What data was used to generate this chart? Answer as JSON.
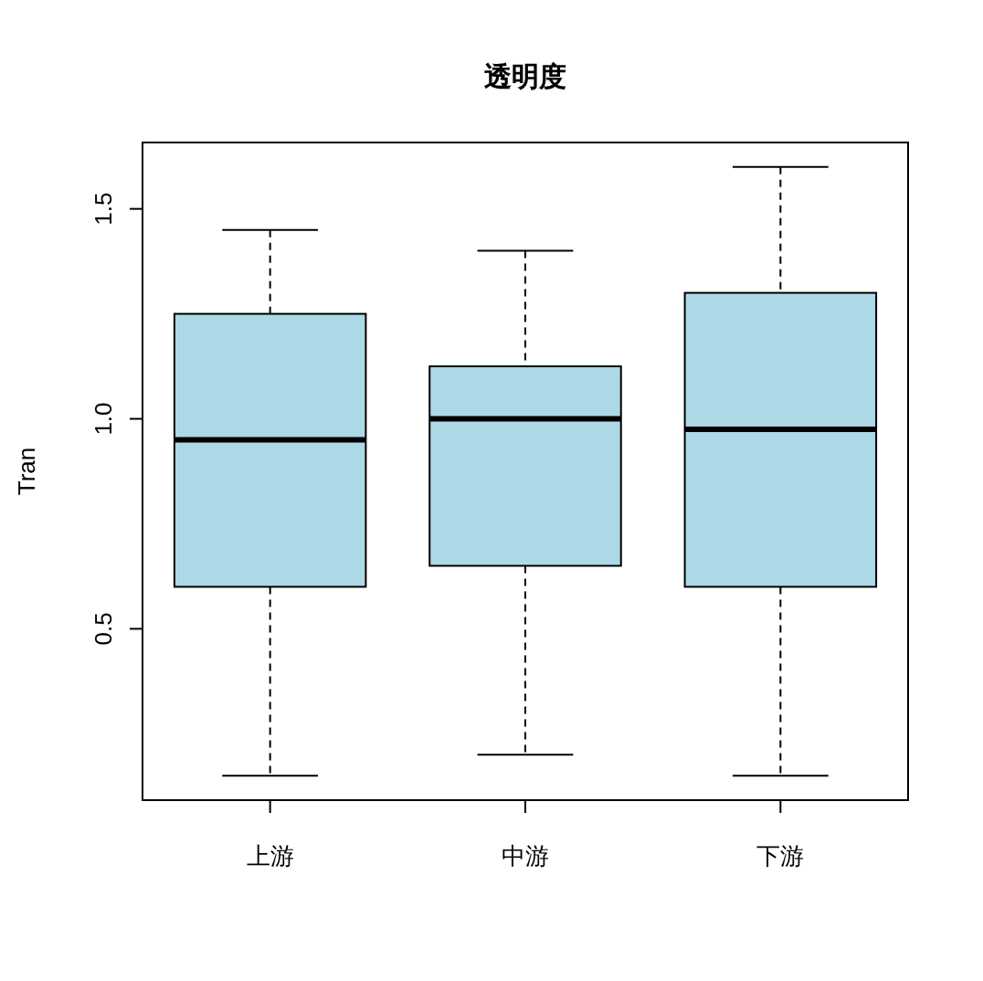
{
  "chart_data": {
    "type": "box",
    "title": "透明度",
    "ylabel": "Tran",
    "categories": [
      "上游",
      "中游",
      "下游"
    ],
    "color": "#add8e6",
    "boxes": [
      {
        "low": 0.15,
        "q1": 0.6,
        "median": 0.95,
        "q3": 1.25,
        "high": 1.45
      },
      {
        "low": 0.2,
        "q1": 0.65,
        "median": 1.0,
        "q3": 1.125,
        "high": 1.4
      },
      {
        "low": 0.15,
        "q1": 0.6,
        "median": 0.975,
        "q3": 1.3,
        "high": 1.6
      }
    ],
    "ylim": [
      0.092,
      1.658
    ],
    "yticks": [
      0.5,
      {
        "value": 1,
        "label": "1.0"
      },
      1.5
    ],
    "grid": false
  }
}
